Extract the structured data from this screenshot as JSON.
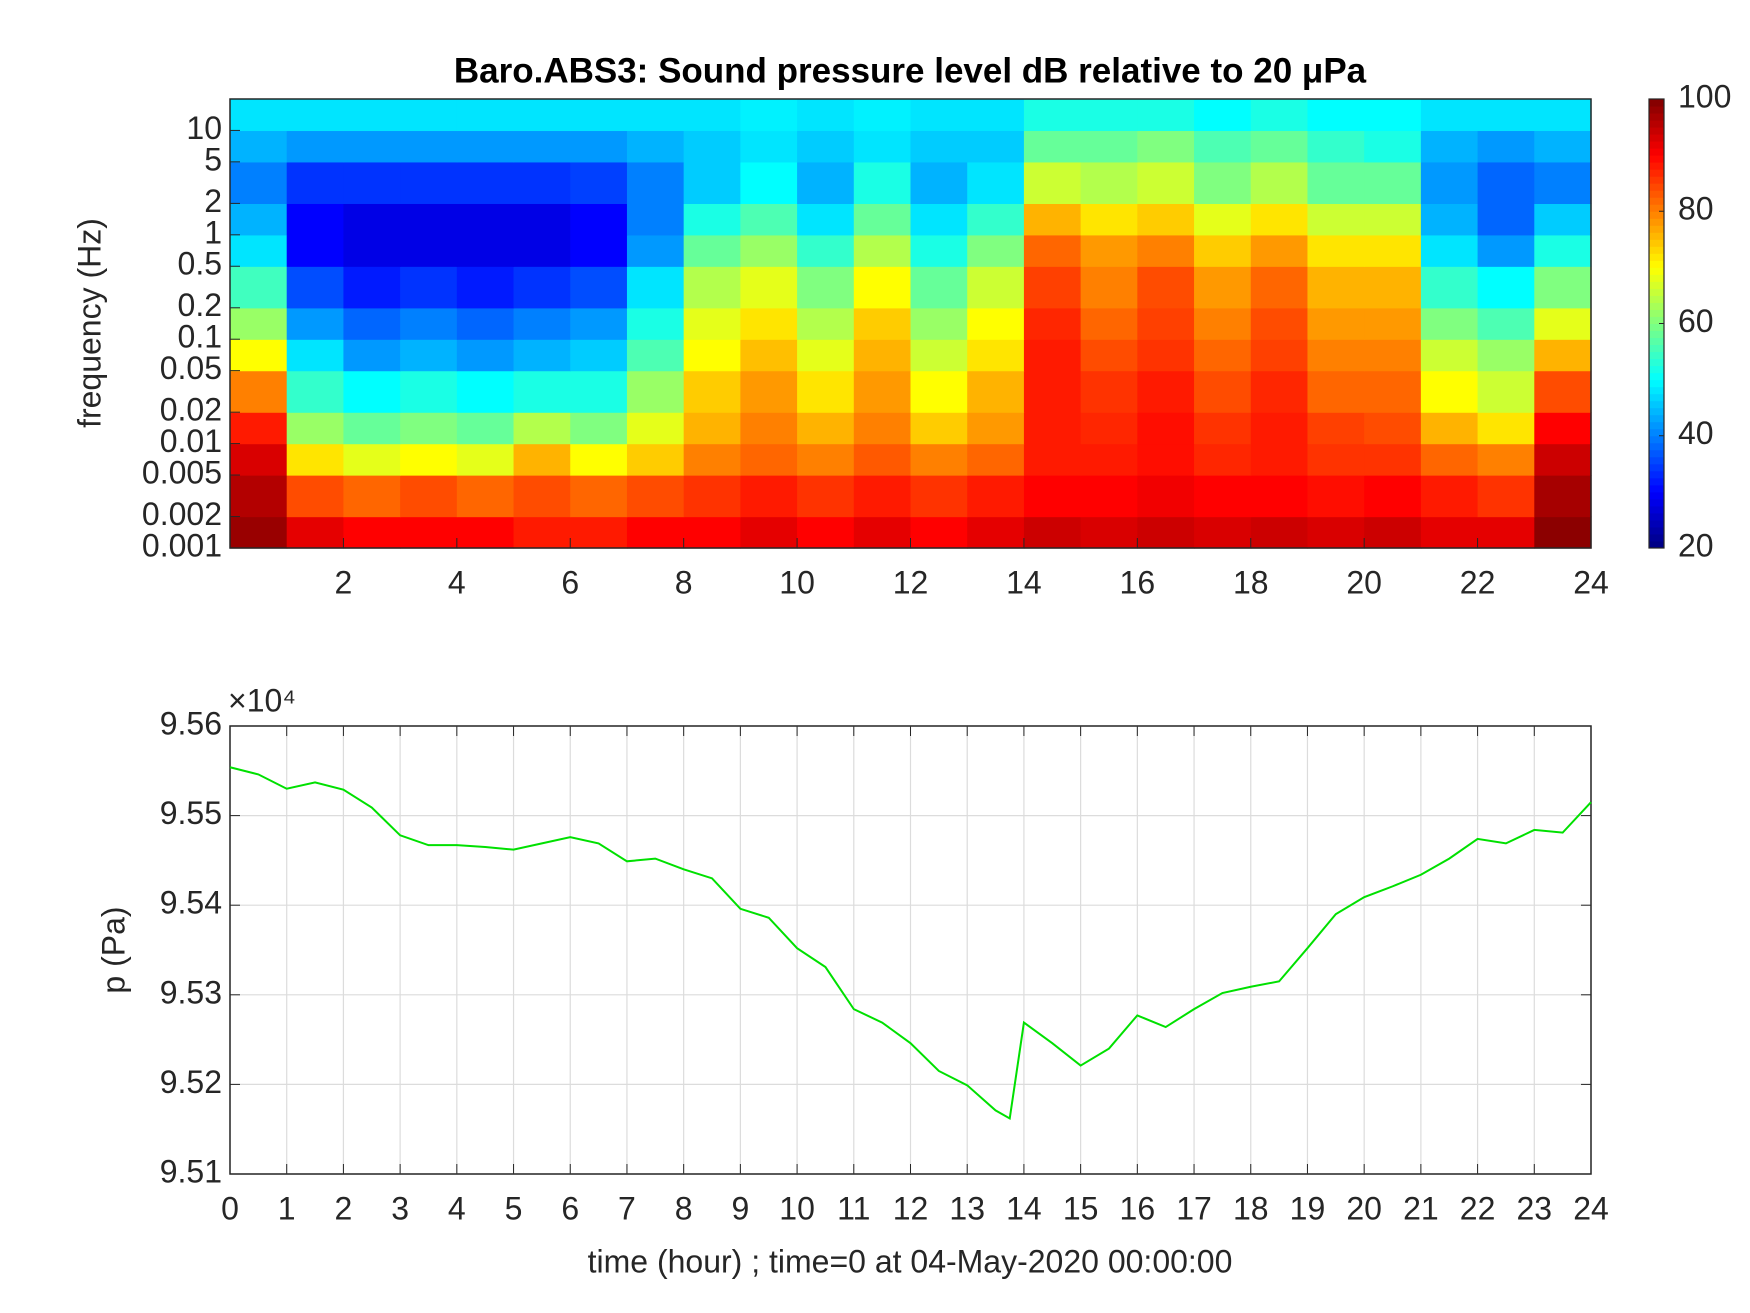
{
  "chart_data": [
    {
      "type": "heatmap",
      "title": "Baro.ABS3: Sound pressure level dB relative to 20 μPa",
      "ylabel": "frequency (Hz)",
      "ylog": true,
      "x_edges": [
        0,
        1,
        2,
        3,
        4,
        5,
        6,
        7,
        8,
        9,
        10,
        11,
        12,
        13,
        14,
        15,
        16,
        17,
        18,
        19,
        20,
        21,
        22,
        23,
        24
      ],
      "y_edges": [
        0.001,
        0.002,
        0.005,
        0.01,
        0.02,
        0.05,
        0.1,
        0.2,
        0.5,
        1,
        2,
        5,
        10,
        20
      ],
      "values": [
        [
          98,
          92,
          90,
          90,
          90,
          88,
          88,
          90,
          90,
          92,
          90,
          92,
          90,
          92,
          94,
          93,
          94,
          93,
          94,
          93,
          94,
          92,
          92,
          99
        ],
        [
          96,
          84,
          82,
          84,
          82,
          84,
          82,
          84,
          86,
          88,
          86,
          88,
          86,
          88,
          90,
          90,
          91,
          90,
          90,
          89,
          90,
          88,
          86,
          97
        ],
        [
          93,
          72,
          68,
          70,
          68,
          76,
          70,
          74,
          80,
          82,
          80,
          83,
          80,
          82,
          88,
          88,
          89,
          87,
          88,
          86,
          86,
          82,
          80,
          94
        ],
        [
          88,
          62,
          58,
          60,
          58,
          64,
          60,
          68,
          76,
          80,
          76,
          80,
          74,
          78,
          88,
          87,
          89,
          86,
          88,
          85,
          84,
          76,
          72,
          90
        ],
        [
          80,
          54,
          50,
          52,
          50,
          52,
          52,
          62,
          74,
          78,
          72,
          78,
          70,
          76,
          88,
          86,
          88,
          84,
          87,
          82,
          82,
          70,
          66,
          84
        ],
        [
          70,
          48,
          42,
          44,
          42,
          44,
          46,
          56,
          70,
          75,
          68,
          76,
          66,
          72,
          88,
          84,
          86,
          82,
          85,
          80,
          80,
          66,
          62,
          76
        ],
        [
          62,
          42,
          38,
          40,
          38,
          40,
          42,
          52,
          68,
          72,
          64,
          74,
          62,
          70,
          87,
          82,
          85,
          80,
          84,
          78,
          78,
          60,
          56,
          68
        ],
        [
          55,
          36,
          32,
          34,
          32,
          34,
          36,
          48,
          64,
          68,
          60,
          70,
          58,
          66,
          85,
          80,
          84,
          78,
          82,
          76,
          76,
          54,
          50,
          60
        ],
        [
          48,
          30,
          28,
          28,
          28,
          28,
          30,
          42,
          58,
          62,
          54,
          64,
          52,
          60,
          82,
          78,
          80,
          74,
          78,
          72,
          72,
          48,
          42,
          52
        ],
        [
          44,
          30,
          28,
          28,
          28,
          28,
          30,
          40,
          52,
          56,
          48,
          58,
          48,
          54,
          76,
          72,
          74,
          68,
          72,
          66,
          66,
          44,
          38,
          46
        ],
        [
          40,
          34,
          34,
          34,
          34,
          34,
          35,
          40,
          46,
          50,
          44,
          52,
          44,
          48,
          66,
          64,
          66,
          60,
          64,
          58,
          58,
          42,
          38,
          40
        ],
        [
          44,
          42,
          42,
          42,
          42,
          42,
          42,
          44,
          46,
          48,
          46,
          48,
          46,
          46,
          58,
          58,
          60,
          56,
          58,
          54,
          52,
          44,
          42,
          44
        ],
        [
          48,
          48,
          48,
          48,
          48,
          48,
          48,
          48,
          48,
          49,
          48,
          49,
          48,
          48,
          52,
          52,
          52,
          50,
          52,
          50,
          50,
          48,
          48,
          48
        ]
      ],
      "colormap": "jet",
      "zlim": [
        20,
        100
      ],
      "zticks": [
        20,
        40,
        60,
        80,
        100
      ],
      "xlim": [
        0,
        24
      ],
      "xticks": [
        2,
        4,
        6,
        8,
        10,
        12,
        14,
        16,
        18,
        20,
        22,
        24
      ],
      "ylim": [
        0.001,
        20
      ],
      "yticks": [
        0.001,
        0.002,
        0.005,
        0.01,
        0.02,
        0.05,
        0.1,
        0.2,
        0.5,
        1,
        2,
        5,
        10
      ]
    },
    {
      "type": "line",
      "xlabel": "time (hour) ; time=0 at 04-May-2020 00:00:00",
      "ylabel": "p (Pa)",
      "y_exponent": "×10⁴",
      "grid": true,
      "x": [
        0,
        0.5,
        1,
        1.5,
        2,
        2.5,
        3,
        3.5,
        4,
        4.5,
        5,
        5.5,
        6,
        6.5,
        7,
        7.5,
        8,
        8.5,
        9,
        9.5,
        10,
        10.5,
        11,
        11.5,
        12,
        12.5,
        13,
        13.5,
        13.75,
        14,
        14.5,
        15,
        15.5,
        16,
        16.5,
        17,
        17.5,
        18,
        18.5,
        19,
        19.5,
        20,
        20.5,
        21,
        21.5,
        22,
        22.5,
        23,
        23.5,
        24
      ],
      "series": [
        {
          "color": "#00e000",
          "values": [
            95554,
            95546,
            95530,
            95537,
            95529,
            95509,
            95478,
            95467,
            95467,
            95465,
            95462,
            95469,
            95476,
            95469,
            95449,
            95452,
            95440,
            95430,
            95396,
            95386,
            95352,
            95331,
            95284,
            95269,
            95246,
            95215,
            95199,
            95171,
            95162,
            95269,
            95246,
            95221,
            95240,
            95277,
            95264,
            95284,
            95302,
            95309,
            95315,
            95352,
            95390,
            95409,
            95421,
            95434,
            95452,
            95474,
            95469,
            95484,
            95481,
            95515
          ]
        }
      ],
      "xlim": [
        0,
        24
      ],
      "xticks": [
        0,
        1,
        2,
        3,
        4,
        5,
        6,
        7,
        8,
        9,
        10,
        11,
        12,
        13,
        14,
        15,
        16,
        17,
        18,
        19,
        20,
        21,
        22,
        23,
        24
      ],
      "ylim": [
        95100,
        95600
      ],
      "yticks": [
        {
          "value": 95100,
          "label": "9.51"
        },
        {
          "value": 95200,
          "label": "9.52"
        },
        {
          "value": 95300,
          "label": "9.53"
        },
        {
          "value": 95400,
          "label": "9.54"
        },
        {
          "value": 95500,
          "label": "9.55"
        },
        {
          "value": 95600,
          "label": "9.56"
        }
      ]
    }
  ]
}
